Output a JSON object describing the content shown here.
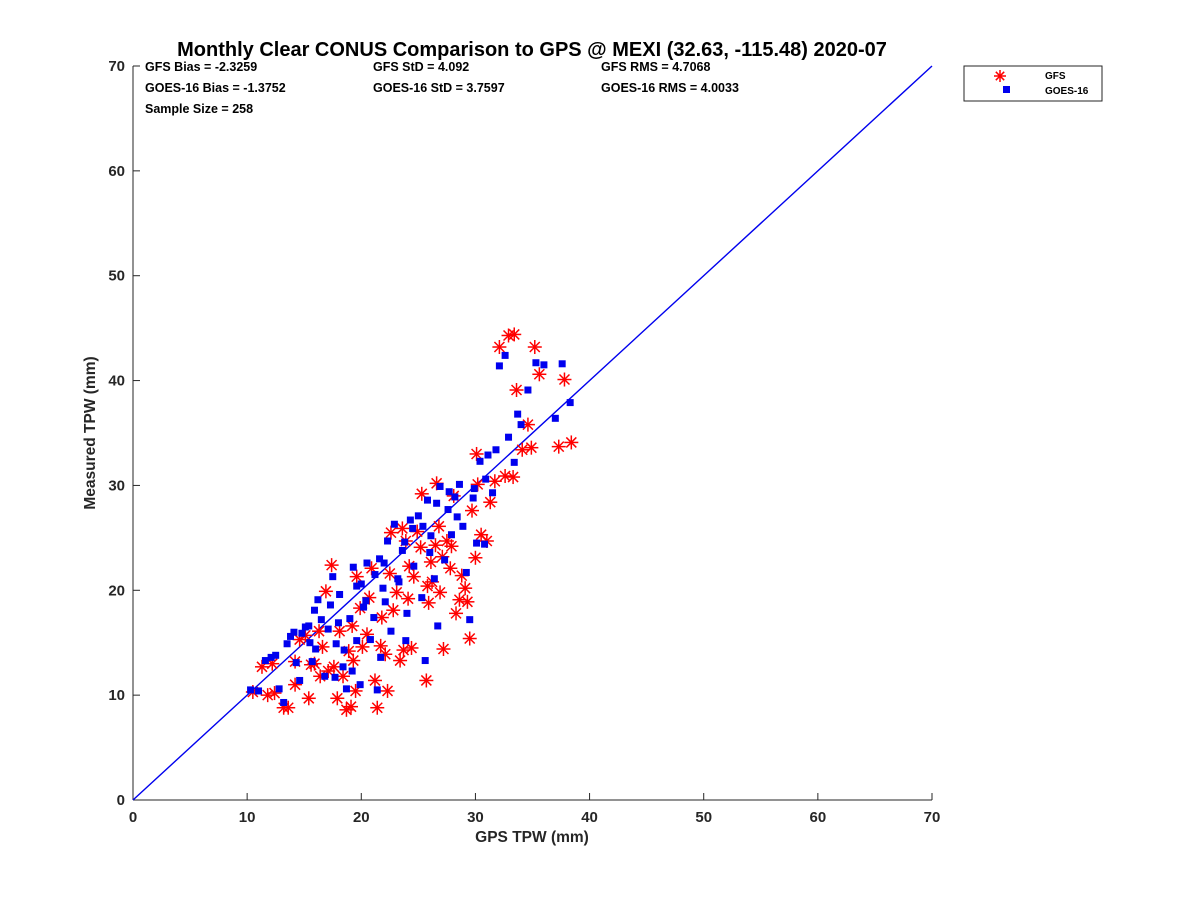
{
  "chart_data": {
    "type": "scatter",
    "title": "Monthly Clear CONUS Comparison to GPS @ MEXI (32.63, -115.48) 2020-07",
    "xlabel": "GPS TPW (mm)",
    "ylabel": "Measured TPW (mm)",
    "xlim": [
      0,
      70
    ],
    "ylim": [
      0,
      70
    ],
    "xticks": [
      "0",
      "10",
      "20",
      "30",
      "40",
      "50",
      "60",
      "70"
    ],
    "yticks": [
      "0",
      "10",
      "20",
      "30",
      "40",
      "50",
      "60",
      "70"
    ],
    "stats": {
      "gfs_bias": "GFS Bias = -2.3259",
      "gfs_std": "GFS StD = 4.092",
      "gfs_rms": "GFS RMS = 4.7068",
      "goes_bias": "GOES-16 Bias = -1.3752",
      "goes_std": "GOES-16 StD = 3.7597",
      "goes_rms": "GOES-16 RMS = 4.0033",
      "sample_size": "Sample Size = 258"
    },
    "legend_position": "outside-top-right",
    "reference_line": {
      "name": "1:1",
      "x": [
        0,
        70
      ],
      "y": [
        0,
        70
      ],
      "color": "#0000ee"
    },
    "series": [
      {
        "name": "GFS",
        "marker": "asterisk",
        "color": "#ff0000",
        "points": [
          [
            10.5,
            10.3
          ],
          [
            11.3,
            12.7
          ],
          [
            11.8,
            10.0
          ],
          [
            12.4,
            10.2
          ],
          [
            12.2,
            13.0
          ],
          [
            13.2,
            8.8
          ],
          [
            13.6,
            8.8
          ],
          [
            14.2,
            13.2
          ],
          [
            14.2,
            11.0
          ],
          [
            15.4,
            9.7
          ],
          [
            14.6,
            15.3
          ],
          [
            15.6,
            12.9
          ],
          [
            16.4,
            11.8
          ],
          [
            16.6,
            14.6
          ],
          [
            17.1,
            12.3
          ],
          [
            17.6,
            12.7
          ],
          [
            17.4,
            22.4
          ],
          [
            17.9,
            9.7
          ],
          [
            18.4,
            11.8
          ],
          [
            18.7,
            8.6
          ],
          [
            19.1,
            8.9
          ],
          [
            19.5,
            10.4
          ],
          [
            18.9,
            14.2
          ],
          [
            19.2,
            16.6
          ],
          [
            19.6,
            21.3
          ],
          [
            20.1,
            14.6
          ],
          [
            20.7,
            19.3
          ],
          [
            21.2,
            11.4
          ],
          [
            21.4,
            8.8
          ],
          [
            21.8,
            17.4
          ],
          [
            22.3,
            10.4
          ],
          [
            22.1,
            13.9
          ],
          [
            22.8,
            18.1
          ],
          [
            23.1,
            19.8
          ],
          [
            23.4,
            13.3
          ],
          [
            23.7,
            14.3
          ],
          [
            24.1,
            19.2
          ],
          [
            24.6,
            21.3
          ],
          [
            24.9,
            25.6
          ],
          [
            25.3,
            29.2
          ],
          [
            25.7,
            11.4
          ],
          [
            25.9,
            18.8
          ],
          [
            26.1,
            22.7
          ],
          [
            26.5,
            24.3
          ],
          [
            26.6,
            30.2
          ],
          [
            26.9,
            19.8
          ],
          [
            27.2,
            14.4
          ],
          [
            27.5,
            24.7
          ],
          [
            27.8,
            22.1
          ],
          [
            28.3,
            17.8
          ],
          [
            28.6,
            19.1
          ],
          [
            29.1,
            20.2
          ],
          [
            29.5,
            15.4
          ],
          [
            30.0,
            23.1
          ],
          [
            30.1,
            33.0
          ],
          [
            30.5,
            25.3
          ],
          [
            31.0,
            24.7
          ],
          [
            31.3,
            28.4
          ],
          [
            31.7,
            30.4
          ],
          [
            32.1,
            43.2
          ],
          [
            32.6,
            30.9
          ],
          [
            32.9,
            44.3
          ],
          [
            33.4,
            44.4
          ],
          [
            33.6,
            39.1
          ],
          [
            34.1,
            33.4
          ],
          [
            34.6,
            35.8
          ],
          [
            34.9,
            33.6
          ],
          [
            35.2,
            43.2
          ],
          [
            35.6,
            40.6
          ],
          [
            37.3,
            33.7
          ],
          [
            37.8,
            40.1
          ],
          [
            38.4,
            34.1
          ],
          [
            33.3,
            30.8
          ],
          [
            29.7,
            27.6
          ],
          [
            30.2,
            30.1
          ],
          [
            29.3,
            18.9
          ],
          [
            24.4,
            14.5
          ],
          [
            18.1,
            16.1
          ],
          [
            15.9,
            13.0
          ],
          [
            16.9,
            19.9
          ],
          [
            20.9,
            22.1
          ],
          [
            22.6,
            25.5
          ],
          [
            23.6,
            25.9
          ],
          [
            27.9,
            24.2
          ],
          [
            26.2,
            20.8
          ],
          [
            21.7,
            14.7
          ],
          [
            15.1,
            15.7
          ],
          [
            19.9,
            18.3
          ],
          [
            25.2,
            24.1
          ],
          [
            28.1,
            29.0
          ],
          [
            20.5,
            15.8
          ],
          [
            22.5,
            21.6
          ],
          [
            24.2,
            22.3
          ],
          [
            26.8,
            26.1
          ],
          [
            28.8,
            21.4
          ],
          [
            19.3,
            13.3
          ],
          [
            16.3,
            16.1
          ],
          [
            23.9,
            24.7
          ],
          [
            27.1,
            23.2
          ],
          [
            25.8,
            20.4
          ]
        ]
      },
      {
        "name": "GOES-16",
        "marker": "square",
        "color": "#0000ee",
        "points": [
          [
            10.3,
            10.5
          ],
          [
            11.0,
            10.4
          ],
          [
            11.6,
            13.3
          ],
          [
            12.1,
            13.6
          ],
          [
            12.5,
            13.8
          ],
          [
            13.2,
            9.3
          ],
          [
            13.8,
            15.6
          ],
          [
            14.1,
            16.0
          ],
          [
            14.3,
            13.1
          ],
          [
            14.6,
            11.4
          ],
          [
            15.1,
            16.5
          ],
          [
            15.4,
            16.6
          ],
          [
            15.7,
            13.2
          ],
          [
            15.9,
            18.1
          ],
          [
            16.2,
            19.1
          ],
          [
            16.5,
            17.2
          ],
          [
            16.8,
            11.8
          ],
          [
            17.1,
            16.3
          ],
          [
            17.5,
            21.3
          ],
          [
            17.8,
            14.9
          ],
          [
            18.1,
            19.6
          ],
          [
            18.4,
            12.7
          ],
          [
            18.7,
            10.6
          ],
          [
            19.0,
            17.3
          ],
          [
            19.3,
            22.2
          ],
          [
            19.6,
            20.4
          ],
          [
            19.9,
            11.0
          ],
          [
            20.2,
            18.4
          ],
          [
            20.5,
            22.6
          ],
          [
            20.8,
            15.3
          ],
          [
            21.1,
            17.4
          ],
          [
            21.4,
            10.5
          ],
          [
            21.6,
            23.0
          ],
          [
            21.9,
            20.2
          ],
          [
            22.3,
            24.7
          ],
          [
            22.6,
            16.1
          ],
          [
            22.9,
            26.3
          ],
          [
            23.2,
            21.1
          ],
          [
            23.6,
            23.8
          ],
          [
            23.9,
            15.2
          ],
          [
            24.3,
            26.7
          ],
          [
            24.6,
            22.3
          ],
          [
            25.0,
            27.1
          ],
          [
            25.3,
            19.3
          ],
          [
            25.6,
            13.3
          ],
          [
            25.8,
            28.6
          ],
          [
            26.1,
            25.2
          ],
          [
            26.4,
            21.1
          ],
          [
            26.7,
            16.6
          ],
          [
            26.9,
            29.9
          ],
          [
            27.3,
            22.9
          ],
          [
            27.6,
            27.7
          ],
          [
            27.9,
            25.3
          ],
          [
            28.2,
            28.9
          ],
          [
            28.6,
            30.1
          ],
          [
            28.9,
            26.1
          ],
          [
            29.2,
            21.7
          ],
          [
            29.5,
            17.2
          ],
          [
            29.8,
            28.8
          ],
          [
            30.1,
            24.5
          ],
          [
            30.4,
            32.3
          ],
          [
            30.8,
            24.4
          ],
          [
            31.1,
            32.9
          ],
          [
            31.5,
            29.3
          ],
          [
            31.8,
            33.4
          ],
          [
            32.1,
            41.4
          ],
          [
            32.6,
            42.4
          ],
          [
            32.9,
            34.6
          ],
          [
            33.4,
            32.2
          ],
          [
            33.7,
            36.8
          ],
          [
            34.0,
            35.8
          ],
          [
            34.6,
            39.1
          ],
          [
            35.3,
            41.7
          ],
          [
            36.0,
            41.5
          ],
          [
            37.0,
            36.4
          ],
          [
            37.6,
            41.6
          ],
          [
            38.3,
            37.9
          ],
          [
            20.4,
            19.0
          ],
          [
            18.5,
            14.3
          ],
          [
            16.0,
            14.4
          ],
          [
            13.5,
            14.9
          ],
          [
            22.1,
            18.9
          ],
          [
            24.0,
            17.8
          ],
          [
            26.0,
            23.6
          ],
          [
            19.6,
            15.2
          ],
          [
            17.3,
            18.6
          ],
          [
            21.2,
            21.5
          ],
          [
            23.3,
            20.8
          ],
          [
            25.4,
            26.1
          ],
          [
            27.7,
            29.4
          ],
          [
            15.5,
            15.0
          ],
          [
            18.0,
            16.9
          ],
          [
            20.0,
            20.6
          ],
          [
            22.0,
            22.6
          ],
          [
            24.5,
            25.9
          ],
          [
            28.4,
            27.0
          ],
          [
            30.9,
            30.6
          ],
          [
            19.2,
            12.3
          ],
          [
            21.7,
            13.6
          ],
          [
            14.8,
            15.9
          ],
          [
            12.8,
            10.6
          ],
          [
            17.7,
            11.7
          ],
          [
            23.8,
            24.6
          ],
          [
            26.6,
            28.3
          ],
          [
            29.9,
            29.7
          ]
        ]
      }
    ]
  }
}
